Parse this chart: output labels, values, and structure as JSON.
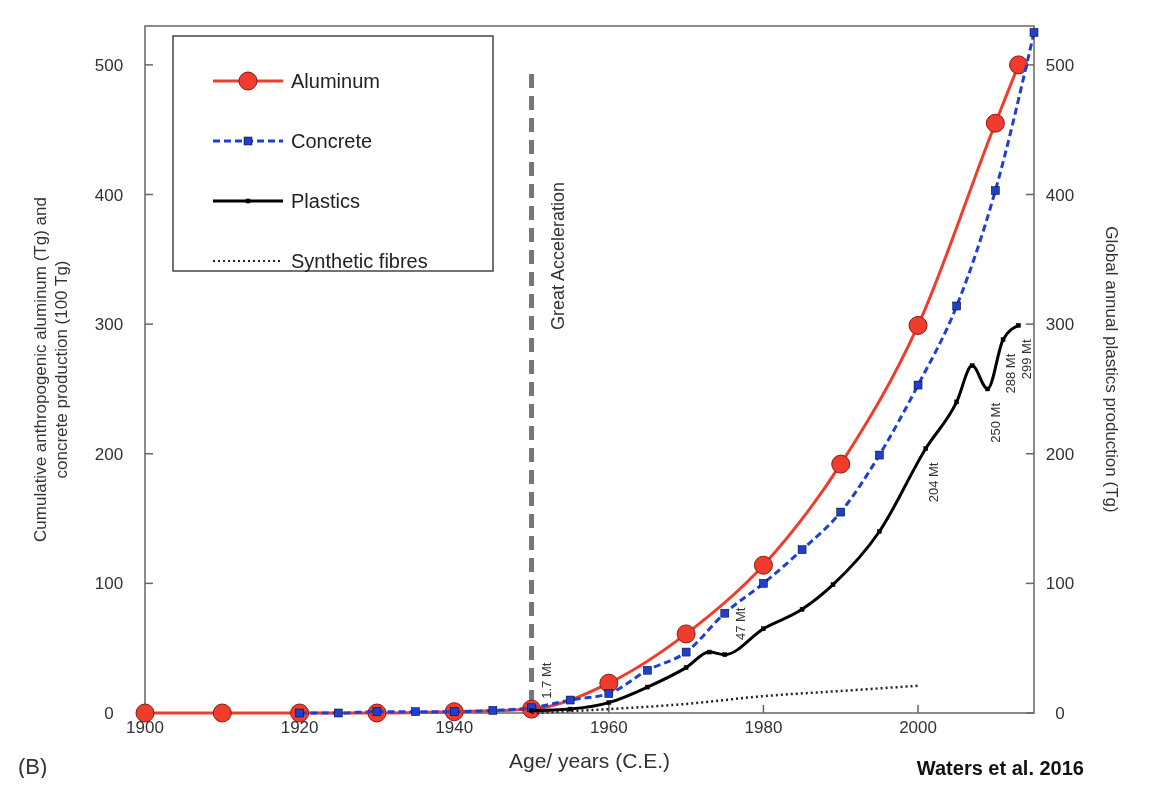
{
  "chart_data": {
    "type": "line",
    "xlabel": "Age/ years (C.E.)",
    "ylabel": "Cumulative anthropogenic aluminum (Tg) and concrete production (100 Tg)",
    "y2label": "Global annual plastics production (Tg)",
    "xlim": [
      1900,
      2015
    ],
    "xticks": [
      1900,
      1920,
      1940,
      1960,
      1980,
      2000
    ],
    "ylim": [
      0,
      530
    ],
    "yticks": [
      0,
      100,
      200,
      300,
      400,
      500
    ],
    "y2lim": [
      0,
      530
    ],
    "y2ticks": [
      0,
      100,
      200,
      300,
      400,
      500
    ],
    "legend": "top left",
    "grid": false,
    "series": [
      {
        "name": "Aluminum",
        "color": "#f03c2c",
        "marker": "circle",
        "line_style": "solid",
        "x": [
          1900,
          1910,
          1920,
          1930,
          1940,
          1950,
          1960,
          1970,
          1980,
          1990,
          2000,
          2010,
          2013
        ],
        "values": [
          0,
          0,
          0,
          0,
          1,
          3,
          23,
          61,
          114,
          192,
          299,
          455,
          500
        ]
      },
      {
        "name": "Concrete",
        "color": "#1f3fd0",
        "marker": "square",
        "line_style": "dashed",
        "x": [
          1920,
          1925,
          1930,
          1935,
          1940,
          1945,
          1950,
          1955,
          1960,
          1965,
          1970,
          1975,
          1980,
          1985,
          1990,
          1995,
          2000,
          2005,
          2010,
          2015
        ],
        "values": [
          0,
          0,
          1,
          1,
          1,
          2,
          4,
          10,
          15,
          33,
          47,
          77,
          100,
          126,
          155,
          199,
          253,
          314,
          403,
          525
        ]
      },
      {
        "name": "Plastics",
        "color": "#000000",
        "marker": "square",
        "line_style": "solid",
        "axis": "y2",
        "x": [
          1950,
          1955,
          1960,
          1965,
          1970,
          1973,
          1975,
          1980,
          1985,
          1989,
          1995,
          2001,
          2005,
          2007,
          2009,
          2011,
          2013
        ],
        "values": [
          1.7,
          3,
          8,
          20,
          35,
          47,
          45,
          65,
          80,
          99,
          140,
          204,
          240,
          268,
          250,
          288,
          299
        ]
      },
      {
        "name": "Synthetic fibres",
        "color": "#222222",
        "marker": "none",
        "line_style": "dotted",
        "x": [
          1950,
          1960,
          1970,
          1980,
          1990,
          2000
        ],
        "values": [
          0,
          3,
          7,
          13,
          17,
          21
        ]
      }
    ],
    "ref_lines": [
      {
        "axis": "x",
        "value": 1950,
        "label": "Great Acceleration",
        "color": "#777777",
        "line_style": "dashed"
      }
    ],
    "annotations": [
      {
        "text": "1.7 Mt",
        "x": 1951,
        "y": 1.7
      },
      {
        "text": "47 Mt",
        "x": 1976,
        "y": 47
      },
      {
        "text": "204 Mt",
        "x": 2001,
        "y": 204
      },
      {
        "text": "250 Mt",
        "x": 2009,
        "y": 250
      },
      {
        "text": "288 Mt",
        "x": 2011,
        "y": 288
      },
      {
        "text": "299 Mt",
        "x": 2013,
        "y": 299
      },
      "Waters et al. 2016",
      "(B)"
    ]
  }
}
